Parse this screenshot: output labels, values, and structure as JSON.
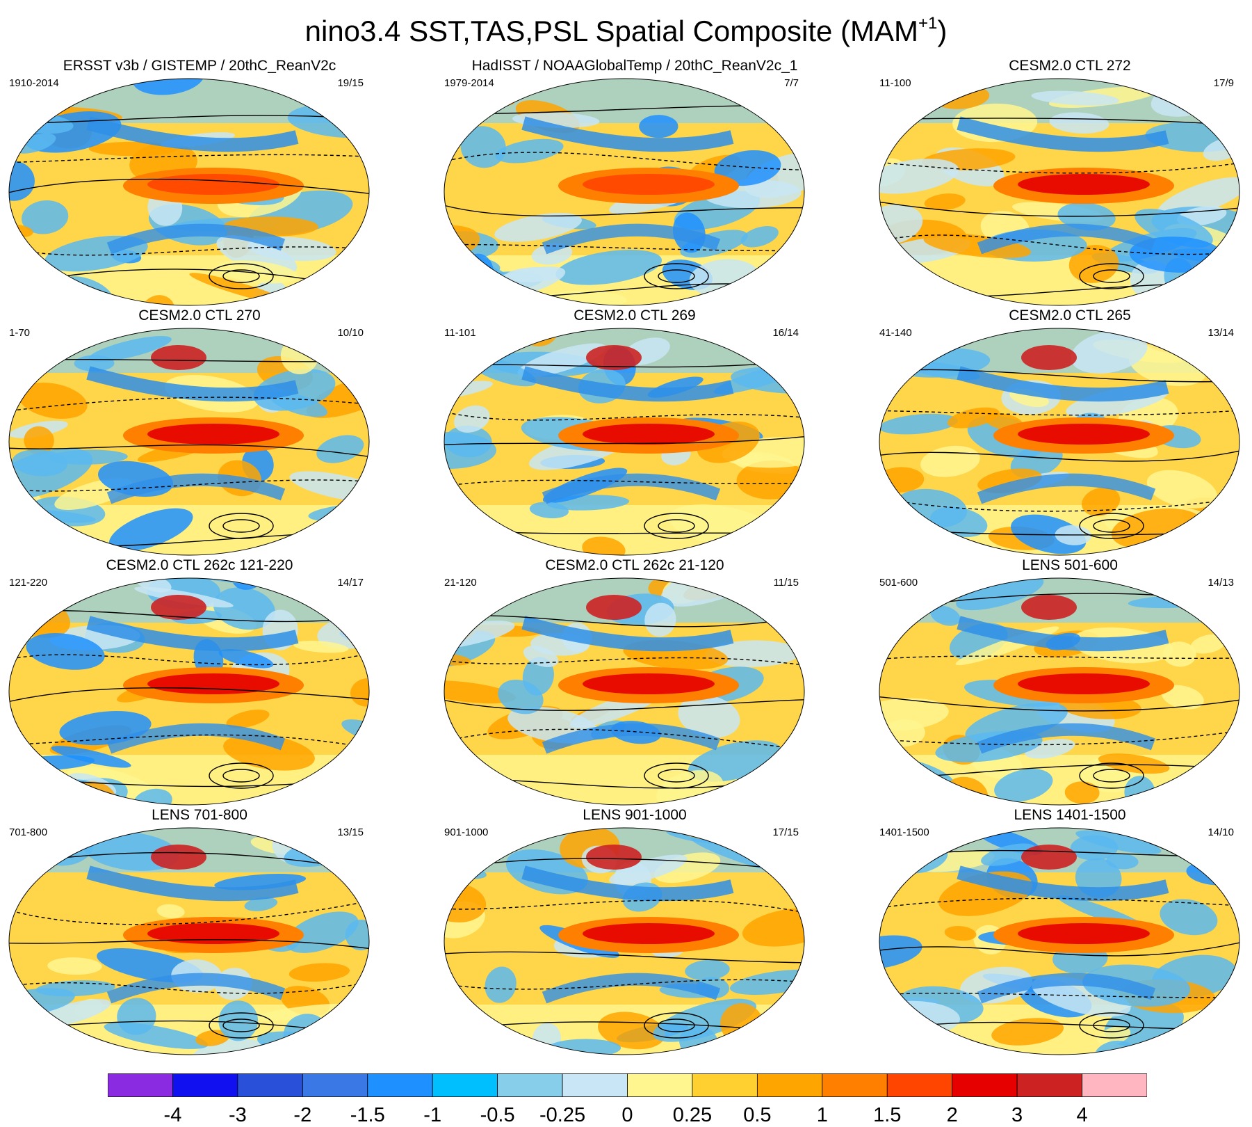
{
  "title": {
    "main": "nino3.4 SST,TAS,PSL Spatial Composite (MAM",
    "sup": "+1",
    "close": ")"
  },
  "panels": [
    {
      "title": "ERSST v3b / GISTEMP / 20thC_ReanV2c",
      "left": "1910-2014",
      "right": "19/15"
    },
    {
      "title": "HadISST / NOAAGlobalTemp / 20thC_ReanV2c_1",
      "left": "1979-2014",
      "right": "7/7"
    },
    {
      "title": "CESM2.0 CTL 272",
      "left": "11-100",
      "right": "17/9"
    },
    {
      "title": "CESM2.0 CTL 270",
      "left": "1-70",
      "right": "10/10"
    },
    {
      "title": "CESM2.0 CTL 269",
      "left": "11-101",
      "right": "16/14"
    },
    {
      "title": "CESM2.0 CTL 265",
      "left": "41-140",
      "right": "13/14"
    },
    {
      "title": "CESM2.0 CTL 262c 121-220",
      "left": "121-220",
      "right": "14/17"
    },
    {
      "title": "CESM2.0 CTL 262c 21-120",
      "left": "21-120",
      "right": "11/15"
    },
    {
      "title": "LENS 501-600",
      "left": "501-600",
      "right": "14/13"
    },
    {
      "title": "LENS 701-800",
      "left": "701-800",
      "right": "13/15"
    },
    {
      "title": "LENS 901-1000",
      "left": "901-1000",
      "right": "17/15"
    },
    {
      "title": "LENS 1401-1500",
      "left": "1401-1500",
      "right": "14/10"
    }
  ],
  "colorbar": {
    "colors": [
      "#8a2be2",
      "#1010f0",
      "#2850d8",
      "#3a78e6",
      "#1e90ff",
      "#00bfff",
      "#87ceeb",
      "#c8e6f5",
      "#fff68f",
      "#ffd030",
      "#ffa500",
      "#ff7f00",
      "#ff4500",
      "#e60000",
      "#cc2222",
      "#ffb6c1"
    ],
    "labels": [
      "-4",
      "-3",
      "-2",
      "-1.5",
      "-1",
      "-0.5",
      "-0.25",
      "0",
      "0.25",
      "0.5",
      "1",
      "1.5",
      "2",
      "3",
      "4"
    ]
  }
}
